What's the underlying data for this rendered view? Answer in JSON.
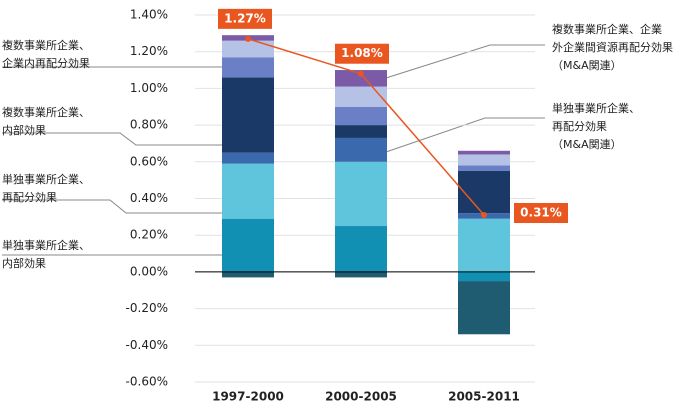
{
  "chart_data": {
    "type": "bar",
    "stacked": true,
    "categories": [
      "1997-2000",
      "2000-2005",
      "2005-2011"
    ],
    "ylim": [
      -0.6,
      1.4
    ],
    "yticks": [
      {
        "value": -0.6,
        "label": "-0.60%"
      },
      {
        "value": -0.4,
        "label": "-0.40%"
      },
      {
        "value": -0.2,
        "label": "-0.20%"
      },
      {
        "value": 0,
        "label": "0.00%"
      },
      {
        "value": 0.2,
        "label": "0.20%"
      },
      {
        "value": 0.4,
        "label": "0.40%"
      },
      {
        "value": 0.6,
        "label": "0.60%"
      },
      {
        "value": 0.8,
        "label": "0.80%"
      },
      {
        "value": 1.0,
        "label": "1.00%"
      },
      {
        "value": 1.2,
        "label": "1.20%"
      },
      {
        "value": 1.4,
        "label": "1.40%"
      }
    ],
    "grid": true,
    "series": [
      {
        "name": "単独事業所企業、\n内部効果",
        "color": "#1190b4",
        "values": [
          0.29,
          0.25,
          -0.05
        ]
      },
      {
        "name": "単独事業所企業、\n再配分効果",
        "color": "#5ec5dc",
        "values": [
          0.3,
          0.35,
          0.29
        ]
      },
      {
        "name": "単独事業所企業、\n再配分効果\n（M&A関連）",
        "color": "#3a69ad",
        "values": [
          0.06,
          0.13,
          0.03
        ]
      },
      {
        "name": "複数事業所企業、\n内部効果",
        "color": "#1b3966",
        "values": [
          0.41,
          0.07,
          0.23
        ]
      },
      {
        "name": "複数事業所企業、\n企業内再配分効果",
        "color": "#6b7fc6",
        "values": [
          0.11,
          0.1,
          0.03
        ]
      },
      {
        "color": "#b6c1e6",
        "values": [
          0.09,
          0.11,
          0.06
        ]
      },
      {
        "name": "複数事業所企業、企業\n外企業間資源再配分効果\n（M&A関連）",
        "color": "#7b5ba8",
        "values": [
          0.03,
          0.09,
          0.02
        ]
      },
      {
        "color": "#1f5c72",
        "values": [
          -0.03,
          -0.03,
          -0.29
        ]
      }
    ],
    "line": {
      "color": "#e9561f",
      "values": [
        1.27,
        1.08,
        0.31
      ],
      "value_labels": [
        "1.27%",
        "1.08%",
        "0.31%"
      ]
    }
  }
}
